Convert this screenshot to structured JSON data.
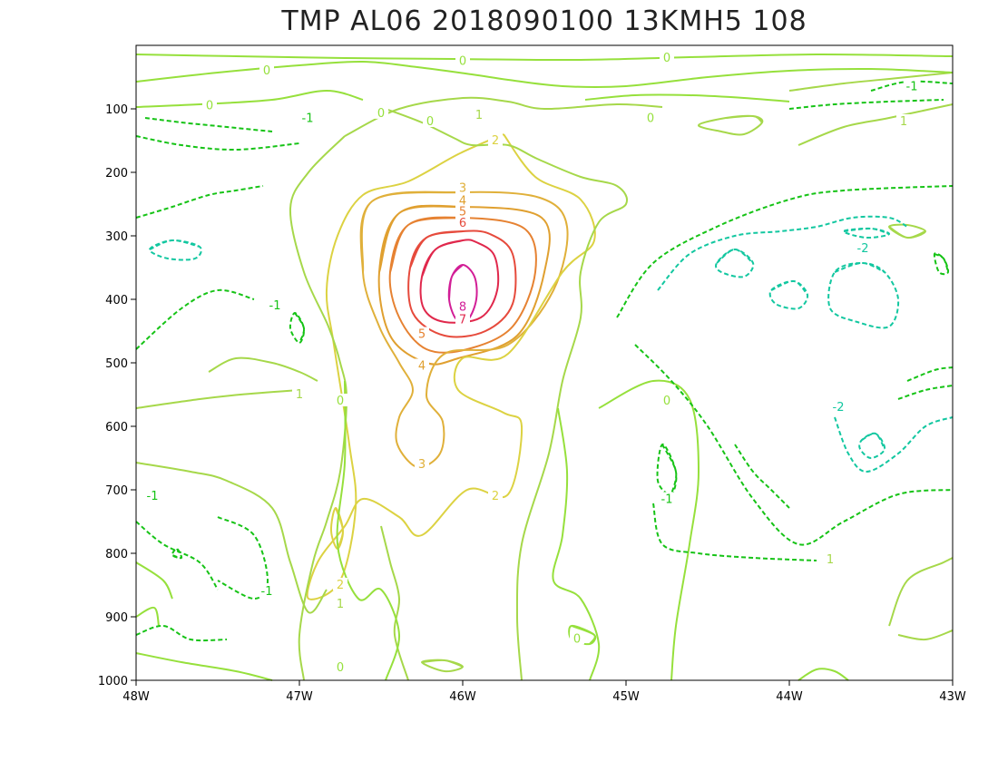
{
  "chart_data": {
    "type": "contour",
    "title": "TMP  AL06  2018090100  13KMH5  108",
    "xlabel": "",
    "ylabel": "",
    "x_ticks": [
      "48W",
      "47W",
      "46W",
      "45W",
      "44W",
      "43W"
    ],
    "xlim": [
      -48,
      -43
    ],
    "y_ticks": [
      "100",
      "200",
      "300",
      "400",
      "500",
      "600",
      "700",
      "800",
      "900",
      "1000"
    ],
    "ylim": [
      0,
      1000
    ],
    "y_inverted": true,
    "grid": false,
    "levels": [
      -2,
      -1,
      0,
      1,
      2,
      3,
      4,
      5,
      6,
      7,
      8
    ],
    "level_colors": {
      "-2": "#12c7a0",
      "-1": "#16c316",
      "0": "#96e03c",
      "1": "#a6d84a",
      "2": "#dcd242",
      "3": "#e0b03a",
      "4": "#e0a030",
      "5": "#e68232",
      "6": "#e64a3c",
      "7": "#e0284c",
      "8": "#d21e96"
    },
    "contour_labels": [
      {
        "lon": -45.9,
        "p": 110,
        "text": "1"
      },
      {
        "lon": -45.8,
        "p": 150,
        "text": "2"
      },
      {
        "lon": -46.0,
        "p": 225,
        "text": "3"
      },
      {
        "lon": -46.0,
        "p": 245,
        "text": "4"
      },
      {
        "lon": -46.0,
        "p": 262,
        "text": "5"
      },
      {
        "lon": -46.0,
        "p": 280,
        "text": "6"
      },
      {
        "lon": -46.0,
        "p": 432,
        "text": "7"
      },
      {
        "lon": -46.0,
        "p": 412,
        "text": "8"
      },
      {
        "lon": -46.25,
        "p": 455,
        "text": "5"
      },
      {
        "lon": -46.25,
        "p": 505,
        "text": "4"
      },
      {
        "lon": -46.25,
        "p": 660,
        "text": "3"
      },
      {
        "lon": -45.8,
        "p": 710,
        "text": "2"
      },
      {
        "lon": -46.75,
        "p": 850,
        "text": "2"
      },
      {
        "lon": -46.75,
        "p": 880,
        "text": "1"
      },
      {
        "lon": -46.75,
        "p": 980,
        "text": "0"
      },
      {
        "lon": -45.3,
        "p": 935,
        "text": "0"
      },
      {
        "lon": -44.75,
        "p": 560,
        "text": "0"
      },
      {
        "lon": -44.75,
        "p": 715,
        "text": "-1"
      },
      {
        "lon": -43.75,
        "p": 810,
        "text": "1"
      },
      {
        "lon": -47.9,
        "p": 710,
        "text": "-1"
      },
      {
        "lon": -47.2,
        "p": 860,
        "text": "-1"
      },
      {
        "lon": -47.0,
        "p": 550,
        "text": "1"
      },
      {
        "lon": -46.75,
        "p": 560,
        "text": "0"
      },
      {
        "lon": -47.15,
        "p": 410,
        "text": "-1"
      },
      {
        "lon": -47.55,
        "p": 95,
        "text": "0"
      },
      {
        "lon": -46.2,
        "p": 120,
        "text": "0"
      },
      {
        "lon": -46.5,
        "p": 107,
        "text": "0"
      },
      {
        "lon": -46.95,
        "p": 115,
        "text": "-1"
      },
      {
        "lon": -47.2,
        "p": 40,
        "text": "0"
      },
      {
        "lon": -46.0,
        "p": 25,
        "text": "0"
      },
      {
        "lon": -44.85,
        "p": 115,
        "text": "0"
      },
      {
        "lon": -44.75,
        "p": 20,
        "text": "0"
      },
      {
        "lon": -43.55,
        "p": 320,
        "text": "-2"
      },
      {
        "lon": -43.7,
        "p": 570,
        "text": "-2"
      },
      {
        "lon": -43.3,
        "p": 120,
        "text": "1"
      },
      {
        "lon": -43.25,
        "p": 65,
        "text": "-1"
      }
    ]
  }
}
